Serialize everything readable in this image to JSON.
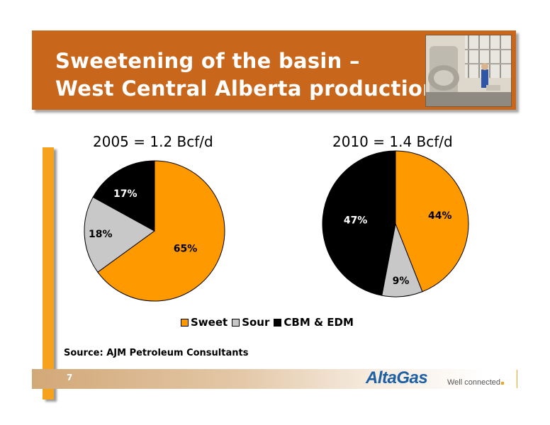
{
  "slide": {
    "title_line1": "Sweetening of the basin –",
    "title_line2": "West Central Alberta production",
    "source": "Source: AJM Petroleum Consultants",
    "page_number": "7",
    "logo_text": "AltaGas",
    "tagline": "Well connected"
  },
  "colors": {
    "banner": "#c8671c",
    "sweet": "#ff9900",
    "sour": "#c8c8c8",
    "cbm_edm": "#000000",
    "accent_bar": "#f5a21e",
    "logo": "#1d5fa3"
  },
  "chart_data": [
    {
      "type": "pie",
      "title": "2005 = 1.2 Bcf/d",
      "series": [
        {
          "name": "Sweet",
          "value": 65,
          "label": "65%"
        },
        {
          "name": "Sour",
          "value": 18,
          "label": "18%"
        },
        {
          "name": "CBM & EDM",
          "value": 17,
          "label": "17%"
        }
      ]
    },
    {
      "type": "pie",
      "title": "2010 = 1.4 Bcf/d",
      "series": [
        {
          "name": "Sweet",
          "value": 44,
          "label": "44%"
        },
        {
          "name": "Sour",
          "value": 9,
          "label": "9%"
        },
        {
          "name": "CBM & EDM",
          "value": 47,
          "label": "47%"
        }
      ]
    }
  ],
  "legend": [
    {
      "name": "Sweet",
      "color_key": "sweet"
    },
    {
      "name": "Sour",
      "color_key": "sour"
    },
    {
      "name": "CBM & EDM",
      "color_key": "cbm_edm"
    }
  ]
}
